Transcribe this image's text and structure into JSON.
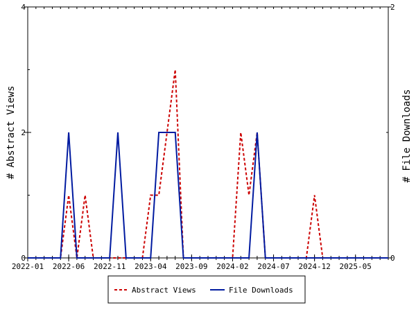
{
  "chart_data": {
    "type": "line",
    "x_tick_labels": [
      "2022-01",
      "2022-06",
      "2022-11",
      "2023-04",
      "2023-09",
      "2024-02",
      "2024-07",
      "2024-12",
      "2025-05"
    ],
    "x_tick_months": [
      "2022-01",
      "2022-06",
      "2022-11",
      "2023-04",
      "2023-09",
      "2024-02",
      "2024-07",
      "2024-12",
      "2025-05"
    ],
    "x_range": [
      "2022-01",
      "2025-09"
    ],
    "y_left": {
      "label": "# Abstract Views",
      "ticks": [
        "0",
        "2",
        "4"
      ],
      "ylim": [
        0,
        4
      ]
    },
    "y_right": {
      "label": "# File Downloads",
      "ticks": [
        "0",
        "2"
      ],
      "ylim": [
        0,
        2
      ]
    },
    "legend_position": "bottom",
    "grid": false,
    "series": [
      {
        "name": "Abstract Views",
        "axis": "left",
        "color": "#cc0000",
        "style": "dashed",
        "points": [
          [
            "2022-01",
            0
          ],
          [
            "2022-02",
            0
          ],
          [
            "2022-03",
            0
          ],
          [
            "2022-04",
            0
          ],
          [
            "2022-05",
            0
          ],
          [
            "2022-06",
            1
          ],
          [
            "2022-07",
            0
          ],
          [
            "2022-08",
            1
          ],
          [
            "2022-09",
            0
          ],
          [
            "2022-10",
            0
          ],
          [
            "2022-11",
            0
          ],
          [
            "2022-12",
            0
          ],
          [
            "2023-01",
            0
          ],
          [
            "2023-02",
            0
          ],
          [
            "2023-03",
            0
          ],
          [
            "2023-04",
            1
          ],
          [
            "2023-05",
            1
          ],
          [
            "2023-06",
            2
          ],
          [
            "2023-07",
            3
          ],
          [
            "2023-08",
            0
          ],
          [
            "2023-09",
            0
          ],
          [
            "2023-10",
            0
          ],
          [
            "2023-11",
            0
          ],
          [
            "2023-12",
            0
          ],
          [
            "2024-01",
            0
          ],
          [
            "2024-02",
            0
          ],
          [
            "2024-03",
            2
          ],
          [
            "2024-04",
            1
          ],
          [
            "2024-05",
            2
          ],
          [
            "2024-06",
            0
          ],
          [
            "2024-07",
            0
          ],
          [
            "2024-08",
            0
          ],
          [
            "2024-09",
            0
          ],
          [
            "2024-10",
            0
          ],
          [
            "2024-11",
            0
          ],
          [
            "2024-12",
            1
          ],
          [
            "2025-01",
            0
          ],
          [
            "2025-02",
            0
          ],
          [
            "2025-03",
            0
          ],
          [
            "2025-04",
            0
          ],
          [
            "2025-05",
            0
          ],
          [
            "2025-06",
            0
          ],
          [
            "2025-07",
            0
          ],
          [
            "2025-08",
            0
          ],
          [
            "2025-09",
            0
          ]
        ]
      },
      {
        "name": "File Downloads",
        "axis": "right",
        "color": "#001aa0",
        "style": "solid",
        "points": [
          [
            "2022-01",
            0
          ],
          [
            "2022-02",
            0
          ],
          [
            "2022-03",
            0
          ],
          [
            "2022-04",
            0
          ],
          [
            "2022-05",
            0
          ],
          [
            "2022-06",
            1
          ],
          [
            "2022-07",
            0
          ],
          [
            "2022-08",
            0
          ],
          [
            "2022-09",
            0
          ],
          [
            "2022-10",
            0
          ],
          [
            "2022-11",
            0
          ],
          [
            "2022-12",
            1
          ],
          [
            "2023-01",
            0
          ],
          [
            "2023-02",
            0
          ],
          [
            "2023-03",
            0
          ],
          [
            "2023-04",
            0
          ],
          [
            "2023-05",
            1
          ],
          [
            "2023-06",
            1
          ],
          [
            "2023-07",
            1
          ],
          [
            "2023-08",
            0
          ],
          [
            "2023-09",
            0
          ],
          [
            "2023-10",
            0
          ],
          [
            "2023-11",
            0
          ],
          [
            "2023-12",
            0
          ],
          [
            "2024-01",
            0
          ],
          [
            "2024-02",
            0
          ],
          [
            "2024-03",
            0
          ],
          [
            "2024-04",
            0
          ],
          [
            "2024-05",
            1
          ],
          [
            "2024-06",
            0
          ],
          [
            "2024-07",
            0
          ],
          [
            "2024-08",
            0
          ],
          [
            "2024-09",
            0
          ],
          [
            "2024-10",
            0
          ],
          [
            "2024-11",
            0
          ],
          [
            "2024-12",
            0
          ],
          [
            "2025-01",
            0
          ],
          [
            "2025-02",
            0
          ],
          [
            "2025-03",
            0
          ],
          [
            "2025-04",
            0
          ],
          [
            "2025-05",
            0
          ],
          [
            "2025-06",
            0
          ],
          [
            "2025-07",
            0
          ],
          [
            "2025-08",
            0
          ],
          [
            "2025-09",
            0
          ]
        ]
      }
    ]
  },
  "legend": {
    "abstract_views": "Abstract Views",
    "file_downloads": "File Downloads"
  }
}
